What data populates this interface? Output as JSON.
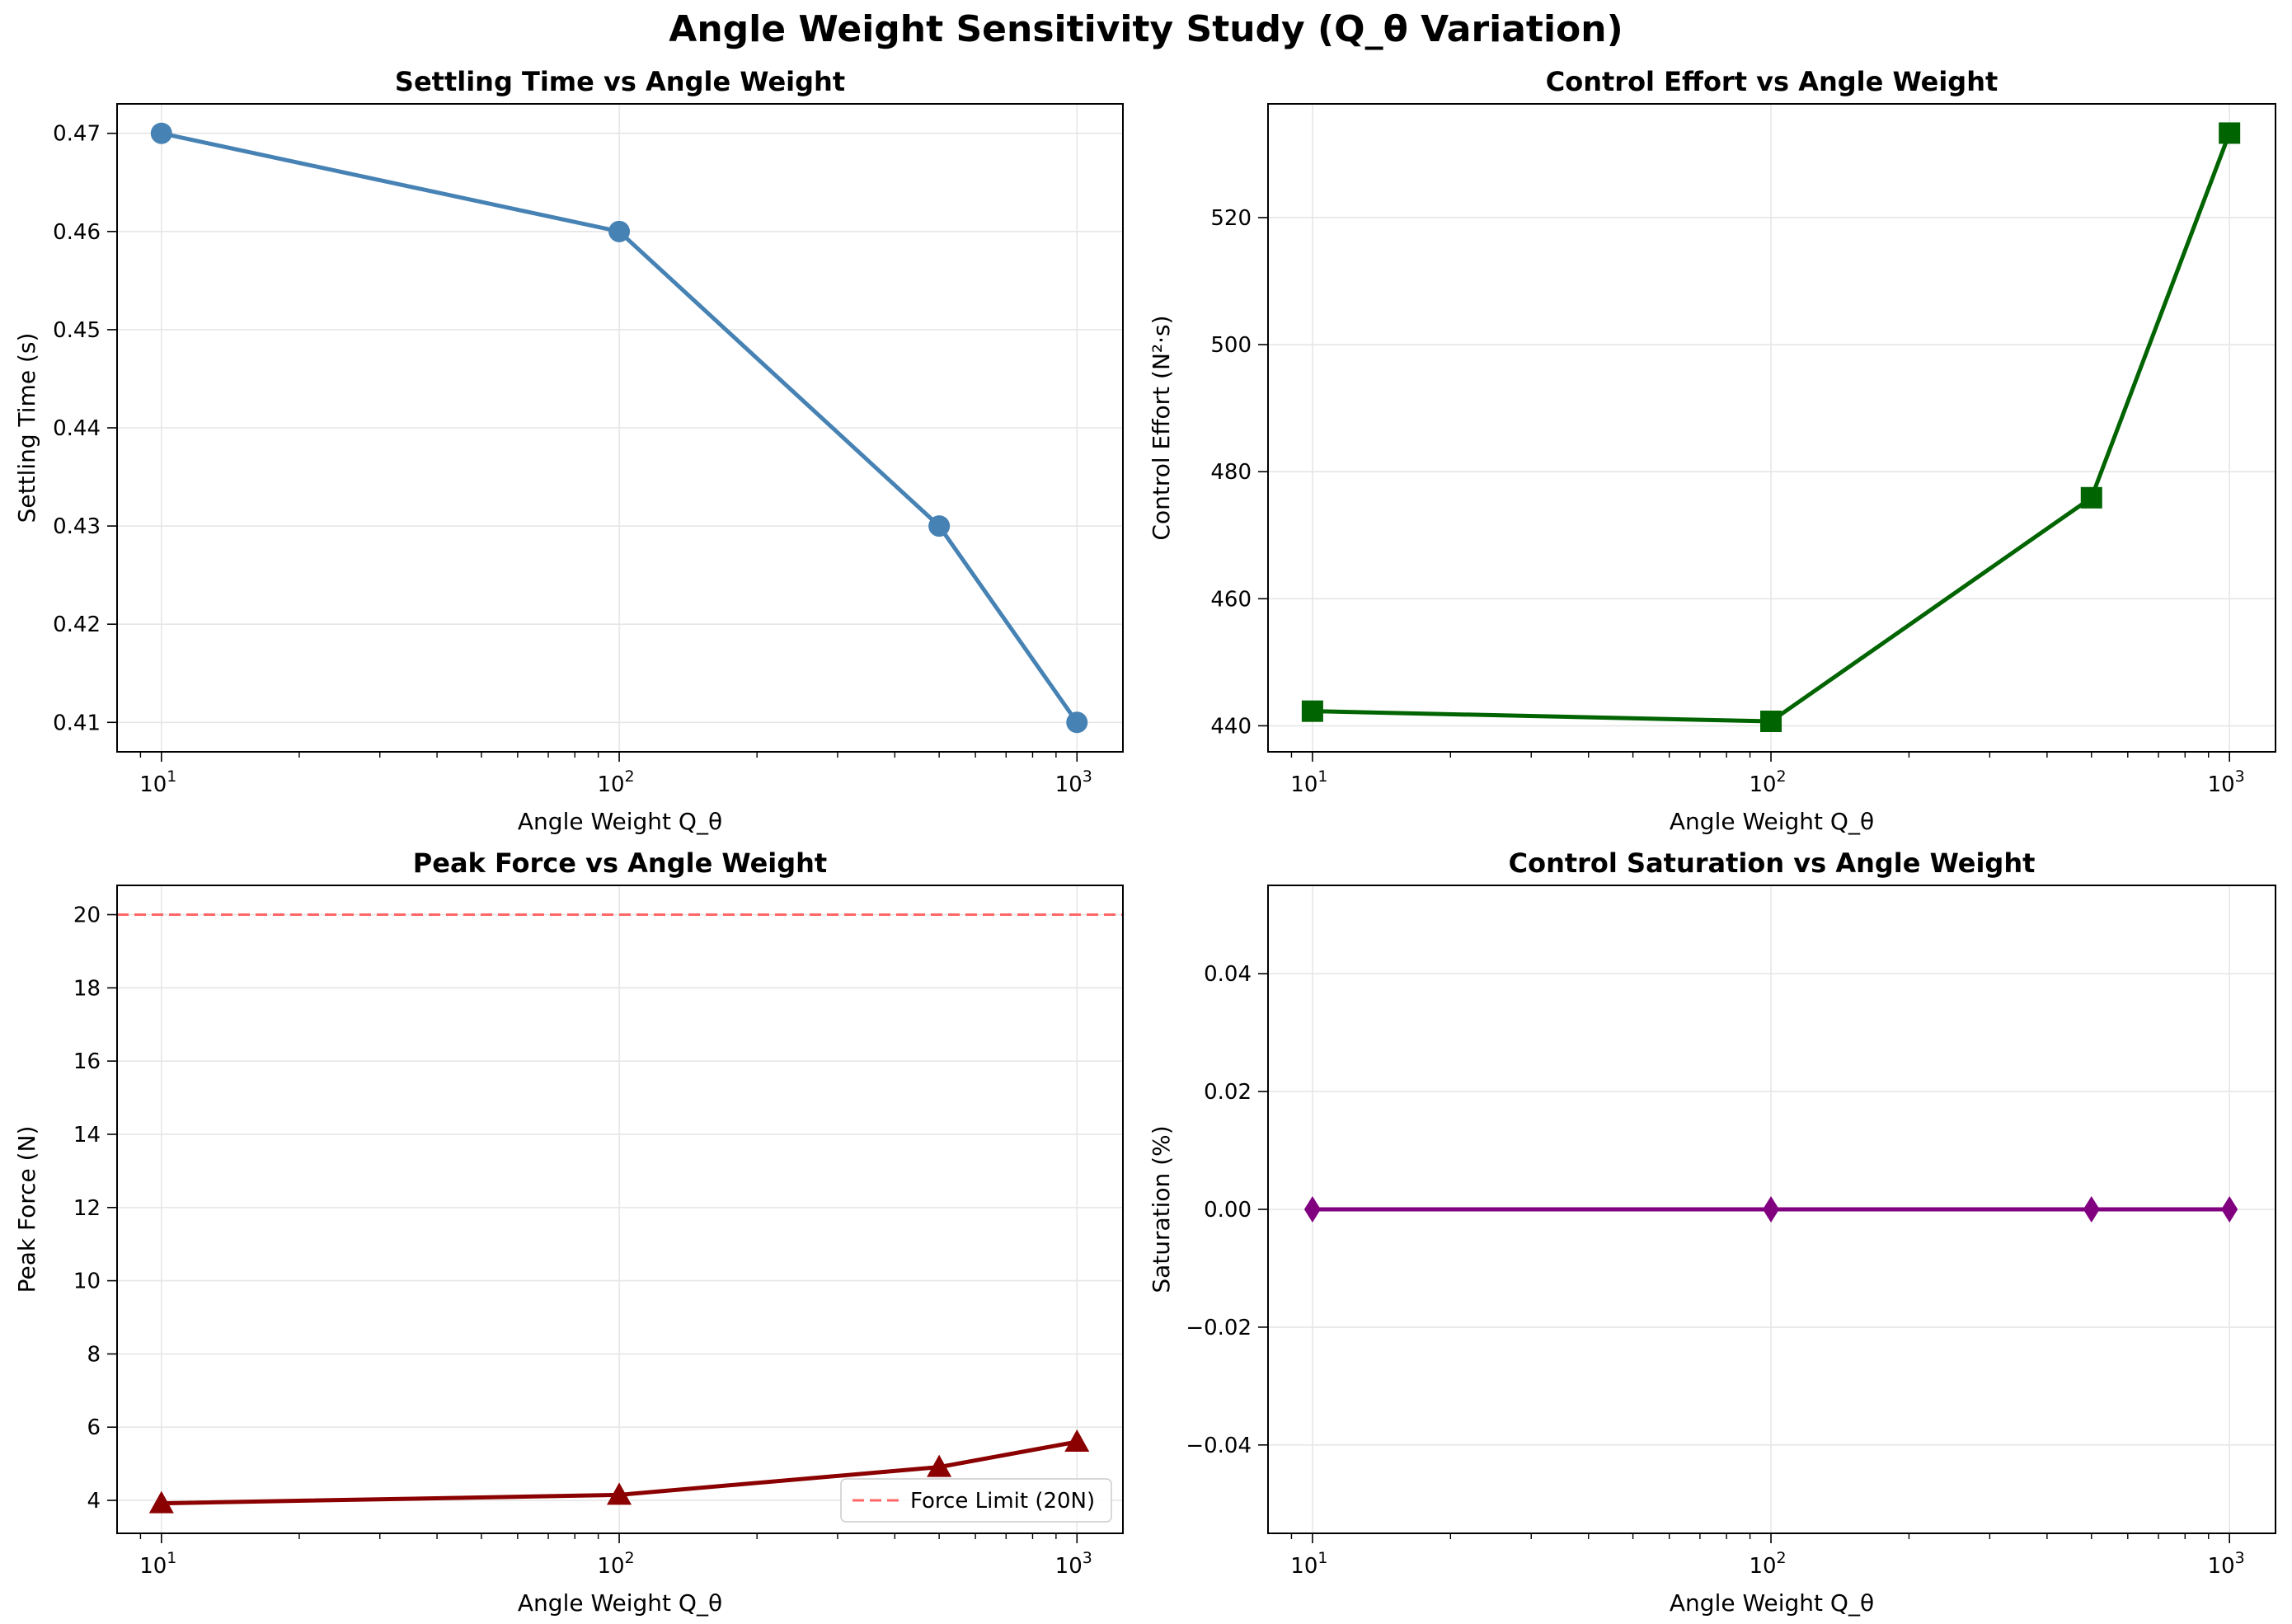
{
  "suptitle": "Angle Weight Sensitivity Study (Q_θ Variation)",
  "colors": {
    "settling": "#4682b4",
    "effort": "#006400",
    "peak": "#8b0000",
    "saturation": "#800080",
    "limit": "#ff6666",
    "grid": "#e6e6e6"
  },
  "chart_data": [
    {
      "type": "line",
      "title": "Settling Time vs Angle Weight",
      "xlabel": "Angle Weight Q_θ",
      "ylabel": "Settling Time (s)",
      "xscale": "log",
      "xlim": [
        8,
        1260
      ],
      "ylim": [
        0.407,
        0.473
      ],
      "xticks": [
        10,
        100,
        1000
      ],
      "xtick_labels": [
        [
          "10",
          "1"
        ],
        [
          "10",
          "2"
        ],
        [
          "10",
          "3"
        ]
      ],
      "yticks": [
        0.41,
        0.42,
        0.43,
        0.44,
        0.45,
        0.46,
        0.47
      ],
      "ytick_labels": [
        "0.41",
        "0.42",
        "0.43",
        "0.44",
        "0.45",
        "0.46",
        "0.47"
      ],
      "grid": true,
      "series": [
        {
          "x": [
            10,
            100,
            500,
            1000
          ],
          "y": [
            0.47,
            0.46,
            0.43,
            0.41
          ],
          "color": "#4682b4",
          "marker": "circle"
        }
      ]
    },
    {
      "type": "line",
      "title": "Control Effort vs Angle Weight",
      "xlabel": "Angle Weight Q_θ",
      "ylabel": "Control Effort (N²·s)",
      "xscale": "log",
      "xlim": [
        8,
        1260
      ],
      "ylim": [
        435.9,
        537.9
      ],
      "xticks": [
        10,
        100,
        1000
      ],
      "xtick_labels": [
        [
          "10",
          "1"
        ],
        [
          "10",
          "2"
        ],
        [
          "10",
          "3"
        ]
      ],
      "yticks": [
        440,
        460,
        480,
        500,
        520
      ],
      "ytick_labels": [
        "440",
        "460",
        "480",
        "500",
        "520"
      ],
      "grid": true,
      "series": [
        {
          "x": [
            10,
            100,
            500,
            1000
          ],
          "y": [
            442.3,
            440.7,
            475.9,
            533.3
          ],
          "color": "#006400",
          "marker": "square"
        }
      ]
    },
    {
      "type": "line",
      "title": "Peak Force vs Angle Weight",
      "xlabel": "Angle Weight Q_θ",
      "ylabel": "Peak Force (N)",
      "xscale": "log",
      "xlim": [
        8,
        1260
      ],
      "ylim": [
        3.1,
        20.8
      ],
      "xticks": [
        10,
        100,
        1000
      ],
      "xtick_labels": [
        [
          "10",
          "1"
        ],
        [
          "10",
          "2"
        ],
        [
          "10",
          "3"
        ]
      ],
      "yticks": [
        4,
        6,
        8,
        10,
        12,
        14,
        16,
        18,
        20
      ],
      "ytick_labels": [
        "4",
        "6",
        "8",
        "10",
        "12",
        "14",
        "16",
        "18",
        "20"
      ],
      "grid": true,
      "hline": {
        "y": 20,
        "color": "#ff6666",
        "label": "Force Limit (20N)"
      },
      "legend": {
        "location": "lower-right",
        "entries": [
          "Force Limit (20N)"
        ]
      },
      "series": [
        {
          "x": [
            10,
            100,
            500,
            1000
          ],
          "y": [
            3.92,
            4.15,
            4.91,
            5.6
          ],
          "color": "#8b0000",
          "marker": "triangle"
        }
      ]
    },
    {
      "type": "line",
      "title": "Control Saturation vs Angle Weight",
      "xlabel": "Angle Weight Q_θ",
      "ylabel": "Saturation (%)",
      "xscale": "log",
      "xlim": [
        8,
        1260
      ],
      "ylim": [
        -0.055,
        0.055
      ],
      "xticks": [
        10,
        100,
        1000
      ],
      "xtick_labels": [
        [
          "10",
          "1"
        ],
        [
          "10",
          "2"
        ],
        [
          "10",
          "3"
        ]
      ],
      "yticks": [
        -0.04,
        -0.02,
        0.0,
        0.02,
        0.04
      ],
      "ytick_labels": [
        "−0.04",
        "−0.02",
        "0.00",
        "0.02",
        "0.04"
      ],
      "grid": true,
      "series": [
        {
          "x": [
            10,
            100,
            500,
            1000
          ],
          "y": [
            0,
            0,
            0,
            0
          ],
          "color": "#800080",
          "marker": "diamond"
        }
      ]
    }
  ]
}
